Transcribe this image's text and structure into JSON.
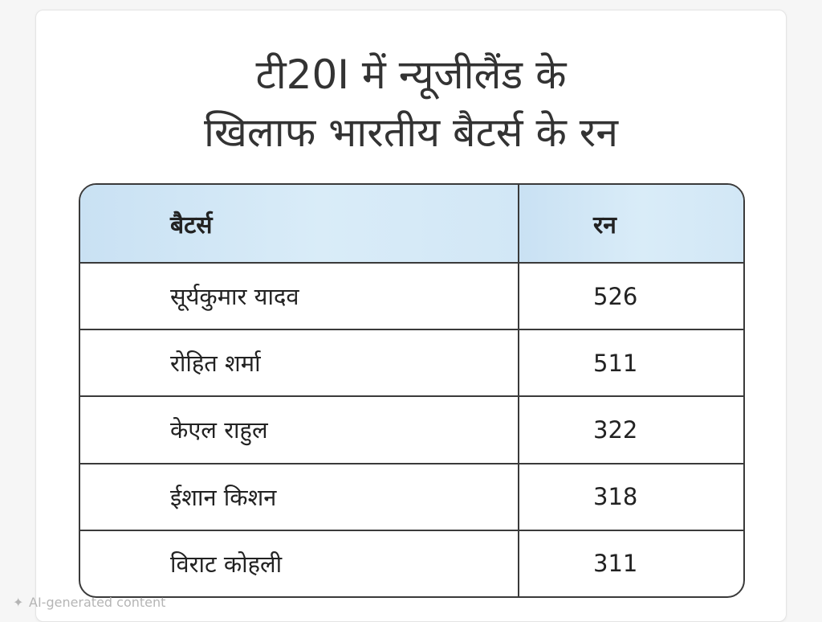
{
  "title": {
    "line1": "टी20I में न्यूजीलैंड के",
    "line2": "खिलाफ भारतीय बैटर्स के रन"
  },
  "table": {
    "headers": [
      "बैटर्स",
      "रन"
    ],
    "rows": [
      {
        "batter": "सूर्यकुमार यादव",
        "runs": "526"
      },
      {
        "batter": "रोहित शर्मा",
        "runs": "511"
      },
      {
        "batter": "केएल राहुल",
        "runs": "322"
      },
      {
        "batter": "ईशान किशन",
        "runs": "318"
      },
      {
        "batter": "विराट कोहली",
        "runs": "311"
      }
    ]
  },
  "watermark": {
    "icon": "sparkle-icon",
    "text": "AI-generated content"
  },
  "colors": {
    "header_bg": "#d2e7f6",
    "border": "#3a3a3a",
    "title_text": "#333333"
  }
}
